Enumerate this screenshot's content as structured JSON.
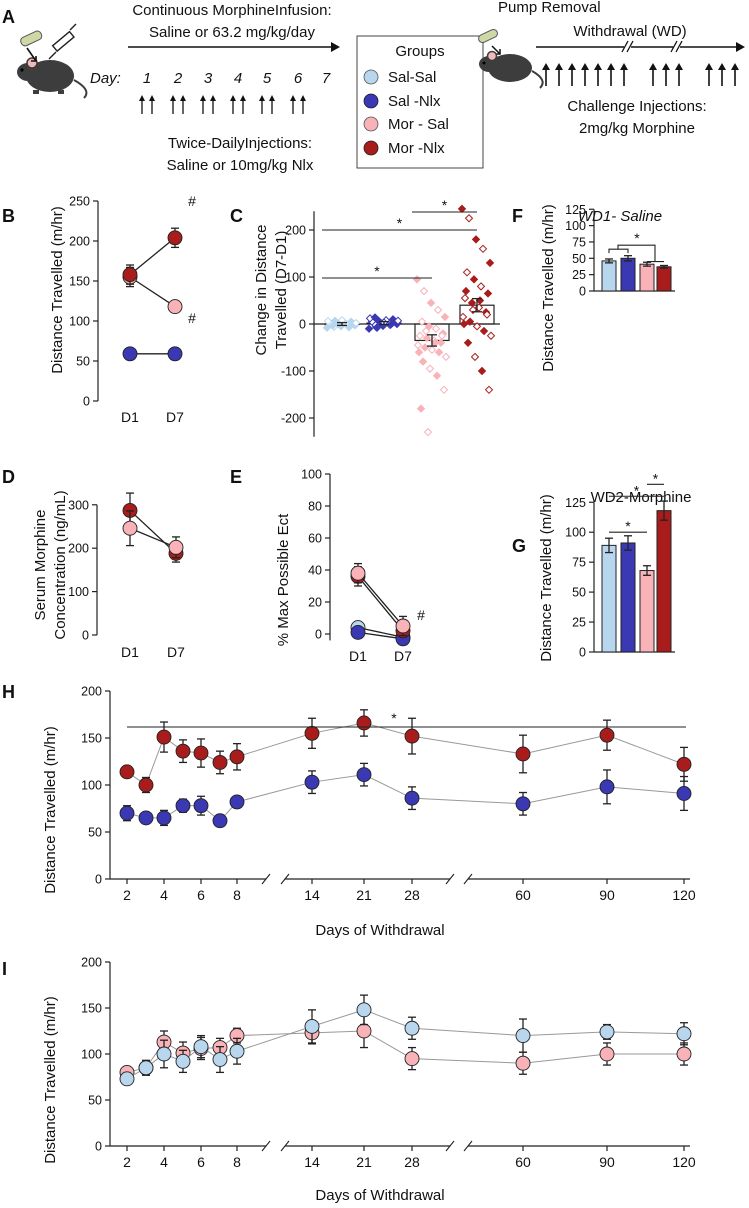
{
  "colors": {
    "sal_sal": "#b8d6ee",
    "sal_nlx": "#3a38b2",
    "mor_sal": "#f8b2b8",
    "mor_nlx": "#a81c1c",
    "axis": "#222222"
  },
  "schematic": {
    "panel_label": "A",
    "infusion_line1": "Continuous MorphineInfusion:",
    "infusion_line2": "Saline or 63.2 mg/kg/day",
    "day_label": "Day:",
    "days": [
      "1",
      "2",
      "3",
      "4",
      "5",
      "6",
      "7"
    ],
    "injection_line1": "Twice-DailyInjections:",
    "injection_line2": "Saline or 10mg/kg Nlx",
    "groups_title": "Groups",
    "groups": [
      "Sal-Sal",
      "Sal -Nlx",
      "Mor - Sal",
      "Mor -Nlx"
    ],
    "pump_removal": "Pump Removal",
    "withdrawal": "Withdrawal (WD)",
    "challenge_line1": "Challenge Injections:",
    "challenge_line2": "2mg/kg Morphine",
    "mouse_icon": "mouse-icon",
    "syringe_icon": "syringe-icon",
    "pump_icon": "pump-icon"
  },
  "chart_data": [
    {
      "id": "B",
      "panel_label": "B",
      "type": "line",
      "xlabel": "",
      "ylabel": "Distance Travelled (m/hr)",
      "categories": [
        "D1",
        "D7"
      ],
      "ylim": [
        0,
        250
      ],
      "yticks": [
        "0",
        "50",
        "100",
        "150",
        "200",
        "250"
      ],
      "series": [
        {
          "name": "Sal-Nlx",
          "values": [
            59,
            59
          ],
          "err": [
            3,
            3
          ]
        },
        {
          "name": "Mor-Sal",
          "values": [
            155,
            118
          ],
          "err": [
            12,
            6
          ]
        },
        {
          "name": "Mor-Nlx",
          "values": [
            158,
            204
          ],
          "err": [
            12,
            12
          ]
        }
      ],
      "annotations": [
        "#",
        "#"
      ]
    },
    {
      "id": "C",
      "panel_label": "C",
      "type": "bar",
      "ylabel_line1": "Change in Distance",
      "ylabel_line2": "Travelled (D7-D1)",
      "ylim": [
        -250,
        250
      ],
      "yticks": [
        "-200",
        "-100",
        "0",
        "100",
        "200"
      ],
      "series": [
        {
          "name": "Sal-Sal",
          "mean": 0,
          "err": 3,
          "points": [
            -8,
            -6,
            -5,
            -4,
            -3,
            -2,
            -1,
            0,
            1,
            2,
            3,
            4,
            5,
            6,
            7,
            8,
            -7,
            2,
            -3
          ]
        },
        {
          "name": "Sal-Nlx",
          "mean": 2,
          "err": 3,
          "points": [
            -10,
            -6,
            -4,
            -2,
            0,
            1,
            2,
            3,
            4,
            5,
            6,
            8,
            10,
            12,
            -8,
            3,
            -1,
            7,
            14
          ]
        },
        {
          "name": "Mor-Sal",
          "mean": -35,
          "err": 12,
          "points": [
            95,
            70,
            45,
            30,
            15,
            5,
            -5,
            -10,
            -20,
            -25,
            -30,
            -35,
            -40,
            -45,
            -50,
            -55,
            -60,
            -70,
            -80,
            -95,
            -110,
            -140,
            -180,
            -230,
            -40,
            -25,
            -60,
            -15
          ]
        },
        {
          "name": "Mor-Nlx",
          "mean": 40,
          "err": 14,
          "points": [
            245,
            225,
            180,
            160,
            130,
            110,
            95,
            80,
            65,
            55,
            45,
            35,
            25,
            15,
            5,
            -5,
            -15,
            -25,
            -40,
            -70,
            -100,
            -140,
            70,
            30,
            50,
            20,
            0
          ]
        }
      ],
      "significance": [
        "*",
        "*",
        "*"
      ]
    },
    {
      "id": "F",
      "panel_label": "F",
      "type": "bar",
      "title": "WD1- Saline",
      "ylabel": "Distance Travelled (m/hr)",
      "ylim": [
        0,
        125
      ],
      "yticks": [
        "0",
        "25",
        "50",
        "75",
        "100",
        "125"
      ],
      "categories": [
        "Sal-Sal",
        "Sal-Nlx",
        "Mor-Sal",
        "Mor-Nlx"
      ],
      "values": [
        46,
        50,
        41,
        37
      ],
      "err": [
        3,
        4,
        3,
        2
      ],
      "significance": [
        "*"
      ]
    },
    {
      "id": "D",
      "panel_label": "D",
      "type": "line",
      "ylabel_line1": "Serum Morphine",
      "ylabel_line2": "Concentration (ng/mL)",
      "categories": [
        "D1",
        "D7"
      ],
      "ylim": [
        0,
        320
      ],
      "yticks": [
        "0",
        "100",
        "200",
        "300"
      ],
      "series": [
        {
          "name": "Mor-Nlx",
          "values": [
            287,
            188
          ],
          "err": [
            40,
            20
          ]
        },
        {
          "name": "Mor-Sal",
          "values": [
            246,
            202
          ],
          "err": [
            40,
            24
          ]
        }
      ]
    },
    {
      "id": "E",
      "panel_label": "E",
      "type": "line",
      "ylabel": "% Max Possible Ect",
      "categories": [
        "D1",
        "D7"
      ],
      "ylim": [
        0,
        100
      ],
      "yticks": [
        "0",
        "20",
        "40",
        "60",
        "80",
        "100"
      ],
      "series": [
        {
          "name": "Sal-Sal",
          "values": [
            4,
            -2
          ],
          "err": [
            2,
            2
          ]
        },
        {
          "name": "Sal-Nlx",
          "values": [
            1,
            -3
          ],
          "err": [
            2,
            2
          ]
        },
        {
          "name": "Mor-Nlx",
          "values": [
            36,
            2
          ],
          "err": [
            6,
            3
          ]
        },
        {
          "name": "Mor-Sal",
          "values": [
            38,
            5
          ],
          "err": [
            6,
            6
          ]
        }
      ],
      "annotations": [
        "#"
      ]
    },
    {
      "id": "G",
      "panel_label": "G",
      "type": "bar",
      "title": "WD2-Morphine",
      "ylabel": "Distance Travelled (m/hr)",
      "ylim": [
        0,
        125
      ],
      "yticks": [
        "0",
        "25",
        "50",
        "75",
        "100",
        "125"
      ],
      "categories": [
        "Sal-Sal",
        "Sal-Nlx",
        "Mor-Sal",
        "Mor-Nlx"
      ],
      "values": [
        89,
        91,
        68,
        118
      ],
      "err": [
        6,
        6,
        4,
        8
      ],
      "significance": [
        "*",
        "*",
        "*"
      ]
    },
    {
      "id": "H",
      "panel_label": "H",
      "type": "line",
      "xlabel": "Days of Withdrawal",
      "ylabel": "Distance Travelled (m/hr)",
      "ylim": [
        0,
        200
      ],
      "yticks": [
        "0",
        "50",
        "100",
        "150",
        "200"
      ],
      "x": [
        2,
        3,
        4,
        5,
        6,
        7,
        8,
        14,
        21,
        28,
        60,
        90,
        120
      ],
      "xticks": [
        "2",
        "4",
        "6",
        "8",
        "14",
        "21",
        "28",
        "60",
        "90",
        "120"
      ],
      "series": [
        {
          "name": "Mor-Nlx",
          "values": [
            114,
            100,
            151,
            136,
            134,
            124,
            130,
            155,
            166,
            152,
            133,
            153,
            122
          ],
          "err": [
            5,
            8,
            16,
            12,
            15,
            12,
            14,
            16,
            14,
            19,
            20,
            16,
            18
          ]
        },
        {
          "name": "Sal-Nlx",
          "values": [
            70,
            65,
            65,
            78,
            78,
            62,
            82,
            103,
            111,
            86,
            80,
            98,
            91
          ],
          "err": [
            8,
            5,
            8,
            7,
            10,
            6,
            5,
            12,
            12,
            12,
            12,
            18,
            18
          ]
        }
      ],
      "significance": [
        "*"
      ]
    },
    {
      "id": "I",
      "panel_label": "I",
      "type": "line",
      "xlabel": "Days of Withdrawal",
      "ylabel": "Distance Travelled (m/hr)",
      "ylim": [
        0,
        200
      ],
      "yticks": [
        "0",
        "50",
        "100",
        "150",
        "200"
      ],
      "x": [
        2,
        3,
        4,
        5,
        6,
        7,
        8,
        14,
        21,
        28,
        60,
        90,
        120
      ],
      "xticks": [
        "2",
        "4",
        "6",
        "8",
        "14",
        "21",
        "28",
        "60",
        "90",
        "120"
      ],
      "series": [
        {
          "name": "Mor-Sal",
          "values": [
            80,
            85,
            113,
            101,
            106,
            107,
            120,
            123,
            125,
            95,
            90,
            100,
            100
          ],
          "err": [
            6,
            8,
            12,
            12,
            12,
            10,
            8,
            12,
            18,
            12,
            12,
            12,
            12
          ]
        },
        {
          "name": "Sal-Sal",
          "values": [
            73,
            85,
            100,
            92,
            108,
            94,
            103,
            130,
            148,
            128,
            120,
            124,
            122
          ],
          "err": [
            6,
            8,
            15,
            12,
            12,
            14,
            14,
            18,
            16,
            12,
            18,
            8,
            12
          ]
        }
      ]
    }
  ]
}
